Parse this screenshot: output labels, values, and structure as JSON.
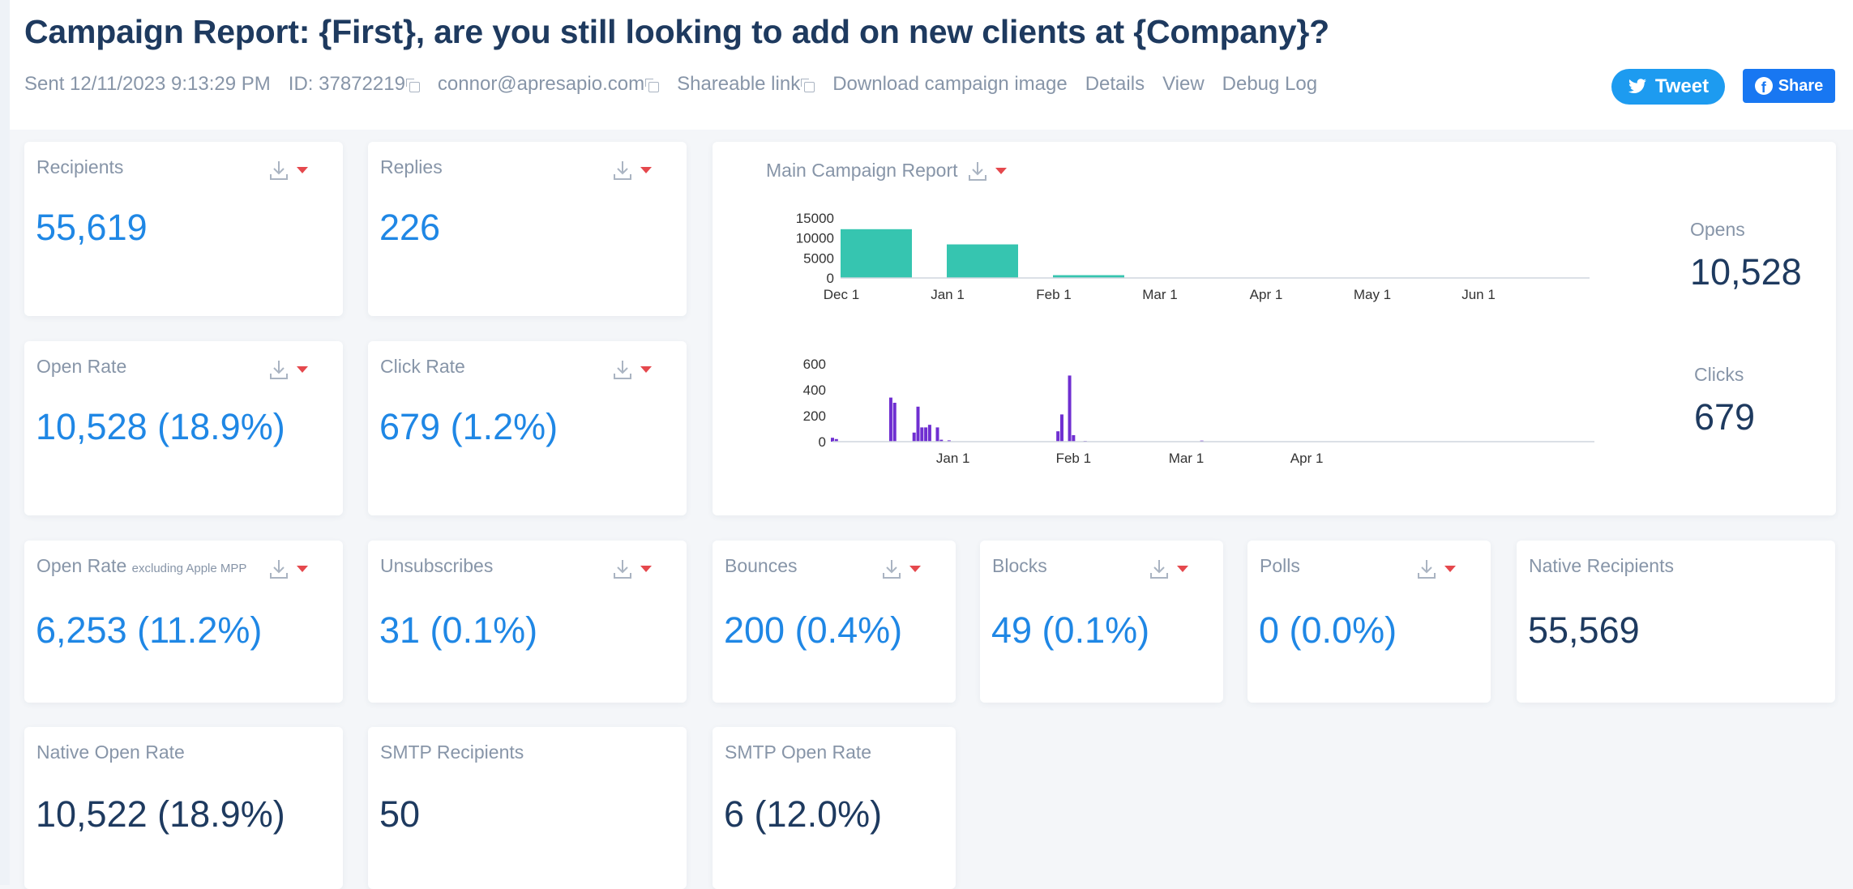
{
  "header": {
    "title": "Campaign Report: {First}, are you still looking to add on new clients at {Company}?",
    "sent": "Sent 12/11/2023 9:13:29 PM",
    "id": "ID: 37872219",
    "email": "connor@apresapio.com",
    "shareable_link": "Shareable link",
    "download_image": "Download campaign image",
    "details": "Details",
    "view": "View",
    "debug_log": "Debug Log",
    "tweet_label": "Tweet",
    "share_label": "Share"
  },
  "stats": {
    "recipients": {
      "label": "Recipients",
      "value": "55,619"
    },
    "replies": {
      "label": "Replies",
      "value": "226"
    },
    "open_rate": {
      "label": "Open Rate",
      "value": "10,528 (18.9%)"
    },
    "click_rate": {
      "label": "Click Rate",
      "value": "679 (1.2%)"
    },
    "open_rate_mpp": {
      "label": "Open Rate",
      "note": "excluding Apple MPP",
      "value": "6,253 (11.2%)"
    },
    "unsubscribes": {
      "label": "Unsubscribes",
      "value": "31 (0.1%)"
    },
    "bounces": {
      "label": "Bounces",
      "value": "200 (0.4%)"
    },
    "blocks": {
      "label": "Blocks",
      "value": "49 (0.1%)"
    },
    "polls": {
      "label": "Polls",
      "value": "0 (0.0%)"
    },
    "native_recipients": {
      "label": "Native Recipients",
      "value": "55,569"
    },
    "native_open_rate": {
      "label": "Native Open Rate",
      "value": "10,522 (18.9%)"
    },
    "smtp_recipients": {
      "label": "SMTP Recipients",
      "value": "50"
    },
    "smtp_open_rate": {
      "label": "SMTP Open Rate",
      "value": "6 (12.0%)"
    }
  },
  "main_chart": {
    "title": "Main Campaign Report",
    "opens_label": "Opens",
    "opens_value": "10,528",
    "clicks_label": "Clicks",
    "clicks_value": "679"
  },
  "colors": {
    "accent_blue": "#1f87e5",
    "opens_bar": "#36c5b0",
    "clicks_bar": "#6f2fd1",
    "caret_red": "#e5484d"
  },
  "icons": [
    "copy-icon",
    "download-icon",
    "caret-down-icon",
    "twitter-icon",
    "facebook-icon"
  ],
  "chart_data": [
    {
      "type": "bar",
      "series_name": "Opens",
      "categories": [
        "Dec 1",
        "Jan 1",
        "Feb 1",
        "Mar 1",
        "Apr 1",
        "May 1",
        "Jun 1"
      ],
      "values": [
        12200,
        8400,
        700,
        0,
        0,
        0,
        0
      ],
      "ylim": [
        0,
        15000
      ],
      "yticks": [
        0,
        5000,
        10000,
        15000
      ],
      "xlabel": "",
      "ylabel": ""
    },
    {
      "type": "bar",
      "series_name": "Clicks",
      "x_ticks": [
        "Jan 1",
        "Feb 1",
        "Mar 1",
        "Apr 1"
      ],
      "x_tick_days": [
        31,
        62,
        91,
        122
      ],
      "x_range_days": [
        0,
        196
      ],
      "ylim": [
        0,
        600
      ],
      "yticks": [
        0,
        200,
        400,
        600
      ],
      "points": [
        {
          "day": 0,
          "value": 30
        },
        {
          "day": 1,
          "value": 20
        },
        {
          "day": 15,
          "value": 340
        },
        {
          "day": 16,
          "value": 300
        },
        {
          "day": 21,
          "value": 70
        },
        {
          "day": 22,
          "value": 270
        },
        {
          "day": 23,
          "value": 110
        },
        {
          "day": 24,
          "value": 110
        },
        {
          "day": 25,
          "value": 130
        },
        {
          "day": 27,
          "value": 110
        },
        {
          "day": 28,
          "value": 15
        },
        {
          "day": 30,
          "value": 10
        },
        {
          "day": 58,
          "value": 80
        },
        {
          "day": 59,
          "value": 210
        },
        {
          "day": 61,
          "value": 510
        },
        {
          "day": 62,
          "value": 50
        },
        {
          "day": 65,
          "value": 5
        },
        {
          "day": 95,
          "value": 8
        }
      ],
      "xlabel": "",
      "ylabel": ""
    }
  ]
}
